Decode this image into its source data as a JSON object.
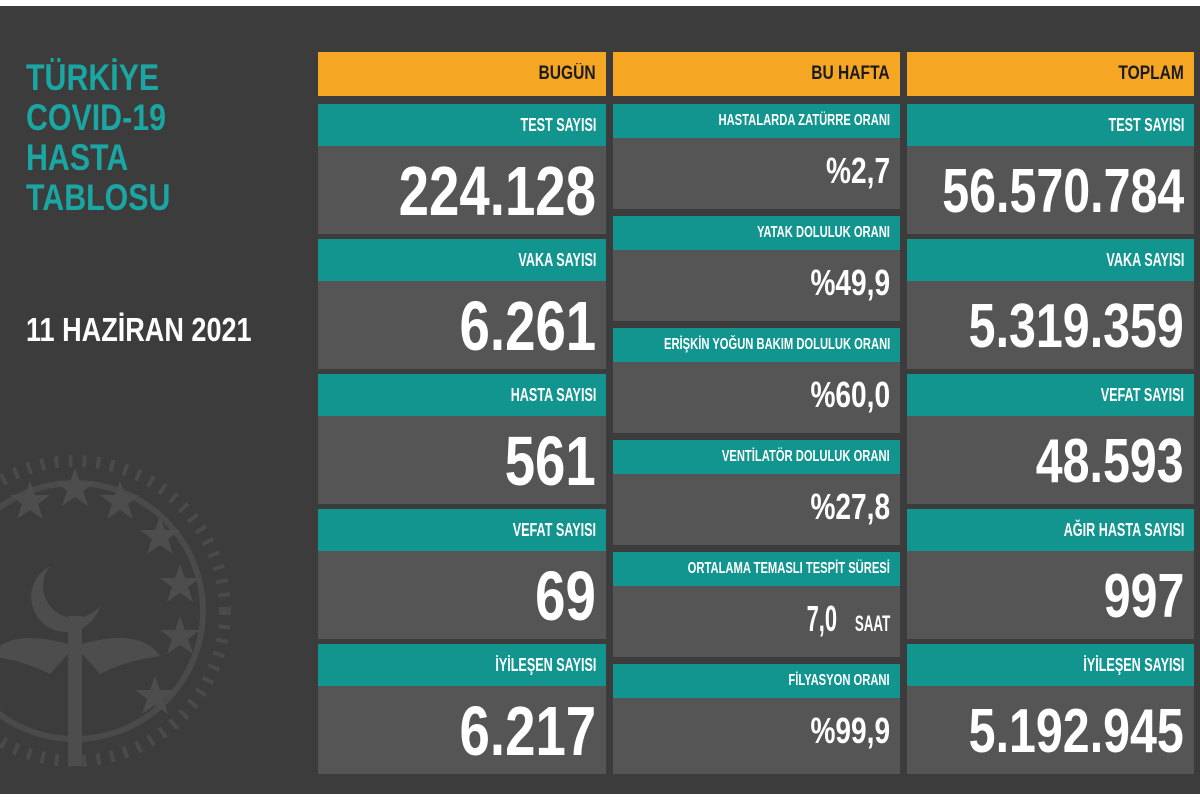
{
  "title": {
    "line1": "TÜRKİYE",
    "line2": "COVID-19",
    "line3": "HASTA",
    "line4": "TABLOSU"
  },
  "date": "11 HAZİRAN 2021",
  "colors": {
    "header": "#f5a623",
    "label": "#12958f",
    "title": "#1aa6a2",
    "card": "#555555",
    "background": "#3c3c3c"
  },
  "today": {
    "header": "BUGÜN",
    "items": [
      {
        "label": "TEST SAYISI",
        "value": "224.128"
      },
      {
        "label": "VAKA SAYISI",
        "value": "6.261"
      },
      {
        "label": "HASTA SAYISI",
        "value": "561"
      },
      {
        "label": "VEFAT SAYISI",
        "value": "69"
      },
      {
        "label": "İYİLEŞEN SAYISI",
        "value": "6.217"
      }
    ]
  },
  "week": {
    "header": "BU HAFTA",
    "items": [
      {
        "label": "HASTALARDA ZATÜRRE ORANI",
        "value": "%2,7"
      },
      {
        "label": "YATAK DOLULUK ORANI",
        "value": "%49,9"
      },
      {
        "label": "ERİŞKİN YOĞUN BAKIM DOLULUK ORANI",
        "value": "%60,0"
      },
      {
        "label": "VENTİLATÖR DOLULUK ORANI",
        "value": "%27,8"
      },
      {
        "label": "ORTALAMA TEMASLI TESPİT SÜRESİ",
        "value": "7,0",
        "unit": "SAAT"
      },
      {
        "label": "FİLYASYON ORANI",
        "value": "%99,9"
      }
    ]
  },
  "total": {
    "header": "TOPLAM",
    "items": [
      {
        "label": "TEST SAYISI",
        "value": "56.570.784"
      },
      {
        "label": "VAKA SAYISI",
        "value": "5.319.359"
      },
      {
        "label": "VEFAT SAYISI",
        "value": "48.593"
      },
      {
        "label": "AĞIR HASTA SAYISI",
        "value": "997"
      },
      {
        "label": "İYİLEŞEN SAYISI",
        "value": "5.192.945"
      }
    ]
  }
}
